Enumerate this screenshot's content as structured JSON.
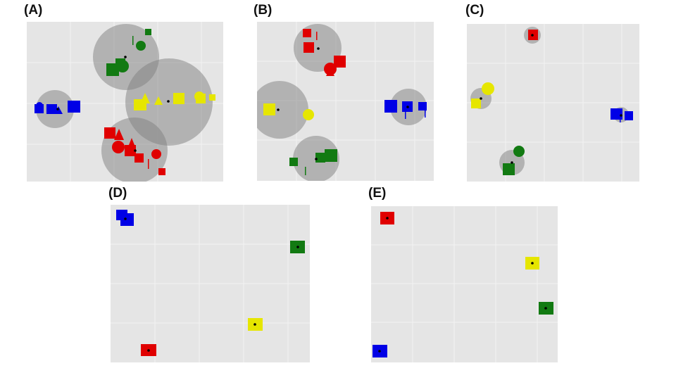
{
  "panels": [
    {
      "label": "(A)"
    },
    {
      "label": "(B)"
    },
    {
      "label": "(C)"
    },
    {
      "label": "(D)"
    },
    {
      "label": "(E)"
    }
  ],
  "colors": {
    "background": "#e5e5e5",
    "grid": "#f2f2f2",
    "circle": "#808080",
    "red": "#e00000",
    "green": "#127a12",
    "blue": "#0000e6",
    "yellow": "#e6e600",
    "center": "#000000"
  }
}
